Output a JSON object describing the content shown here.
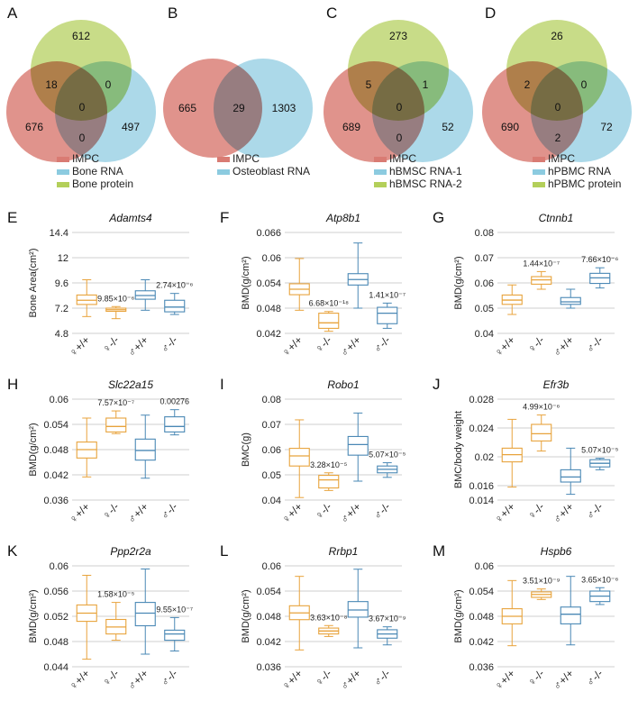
{
  "colors": {
    "impc": "#d97b73",
    "blue": "#8ccbe0",
    "green": "#b3cf5a",
    "female_box": "#e8a33c",
    "male_box": "#4a88b5",
    "grid": "#cfcfcf"
  },
  "chart_data": [
    {
      "type": "venn3",
      "panel": "A",
      "sets": [
        "IMPC",
        "Bone RNA",
        "Bone protein"
      ],
      "regions": {
        "impc_only": "676",
        "blue_only": "497",
        "green_only": "612",
        "impc_green": "18",
        "green_blue": "0",
        "impc_blue": "0",
        "center": "0"
      }
    },
    {
      "type": "venn2",
      "panel": "B",
      "sets": [
        "IMPC",
        "Osteoblast RNA"
      ],
      "regions": {
        "left_only": "665",
        "overlap": "29",
        "right_only": "1303"
      }
    },
    {
      "type": "venn3",
      "panel": "C",
      "sets": [
        "IMPC",
        "hBMSC RNA-1",
        "hBMSC RNA-2"
      ],
      "regions": {
        "impc_only": "689",
        "blue_only": "52",
        "green_only": "273",
        "impc_green": "5",
        "green_blue": "1",
        "impc_blue": "0",
        "center": "0"
      }
    },
    {
      "type": "venn3",
      "panel": "D",
      "sets": [
        "IMPC",
        "hPBMC RNA",
        "hPBMC protein"
      ],
      "regions": {
        "impc_only": "690",
        "blue_only": "72",
        "green_only": "26",
        "impc_green": "2",
        "green_blue": "0",
        "impc_blue": "2",
        "center": "0"
      }
    },
    {
      "type": "boxplot",
      "panel": "E",
      "title": "Adamts4",
      "ylabel": "Bone Area(cm²)",
      "ylim": [
        4.8,
        14.4
      ],
      "yticks": [
        "14.4",
        "12",
        "9.6",
        "7.2",
        "4.8"
      ],
      "categories": [
        "♀+/+",
        "♀-/-",
        "♂+/+",
        "♂-/-"
      ],
      "boxes": [
        {
          "min": 6.4,
          "q1": 7.55,
          "median": 7.95,
          "q3": 8.45,
          "max": 9.9,
          "group": "female"
        },
        {
          "min": 6.2,
          "q1": 6.9,
          "median": 7.05,
          "q3": 7.2,
          "max": 7.35,
          "group": "female"
        },
        {
          "min": 7.0,
          "q1": 8.05,
          "median": 8.4,
          "q3": 8.85,
          "max": 9.9,
          "group": "male"
        },
        {
          "min": 6.6,
          "q1": 6.85,
          "median": 7.3,
          "q3": 7.95,
          "max": 8.6,
          "group": "male"
        }
      ],
      "pvalues": [
        {
          "box": 1,
          "text": "9.85×10⁻⁶"
        },
        {
          "box": 3,
          "text": "2.74×10⁻⁶"
        }
      ]
    },
    {
      "type": "boxplot",
      "panel": "F",
      "title": "Atp8b1",
      "ylabel": "BMD(g/cm²)",
      "ylim": [
        0.042,
        0.066
      ],
      "yticks": [
        "0.066",
        "0.06",
        "0.054",
        "0.048",
        "0.042"
      ],
      "categories": [
        "♀+/+",
        "♀-/-",
        "♂+/+",
        "♂-/-"
      ],
      "boxes": [
        {
          "min": 0.0475,
          "q1": 0.0512,
          "median": 0.0525,
          "q3": 0.0538,
          "max": 0.0598,
          "group": "female"
        },
        {
          "min": 0.0425,
          "q1": 0.0432,
          "median": 0.0445,
          "q3": 0.0468,
          "max": 0.0472,
          "group": "female"
        },
        {
          "min": 0.048,
          "q1": 0.0535,
          "median": 0.0548,
          "q3": 0.0562,
          "max": 0.0635,
          "group": "male"
        },
        {
          "min": 0.0432,
          "q1": 0.0443,
          "median": 0.0468,
          "q3": 0.0482,
          "max": 0.0492,
          "group": "male"
        }
      ],
      "pvalues": [
        {
          "box": 1,
          "text": "6.68×10⁻¹⁸"
        },
        {
          "box": 3,
          "text": "1.41×10⁻⁷"
        }
      ]
    },
    {
      "type": "boxplot",
      "panel": "G",
      "title": "Ctnnb1",
      "ylabel": "BMD(g/cm²)",
      "ylim": [
        0.04,
        0.08
      ],
      "yticks": [
        "0.08",
        "0.07",
        "0.06",
        "0.05",
        "0.04"
      ],
      "categories": [
        "♀+/+",
        "♀-/-",
        "♂+/+",
        "♂-/-"
      ],
      "boxes": [
        {
          "min": 0.0475,
          "q1": 0.0515,
          "median": 0.0532,
          "q3": 0.0552,
          "max": 0.0592,
          "group": "female"
        },
        {
          "min": 0.0575,
          "q1": 0.0595,
          "median": 0.0612,
          "q3": 0.0625,
          "max": 0.0645,
          "group": "female"
        },
        {
          "min": 0.05,
          "q1": 0.0515,
          "median": 0.0525,
          "q3": 0.0542,
          "max": 0.0575,
          "group": "male"
        },
        {
          "min": 0.058,
          "q1": 0.0598,
          "median": 0.062,
          "q3": 0.0638,
          "max": 0.066,
          "group": "male"
        }
      ],
      "pvalues": [
        {
          "box": 1,
          "text": "1.44×10⁻⁷"
        },
        {
          "box": 3,
          "text": "7.66×10⁻⁶"
        }
      ]
    },
    {
      "type": "boxplot",
      "panel": "H",
      "title": "Slc22a15",
      "ylabel": "BMD(g/cm²)",
      "ylim": [
        0.036,
        0.06
      ],
      "yticks": [
        "0.06",
        "0.054",
        "0.048",
        "0.042",
        "0.036"
      ],
      "categories": [
        "♀+/+",
        "♀-/-",
        "♂+/+",
        "♂-/-"
      ],
      "boxes": [
        {
          "min": 0.0415,
          "q1": 0.046,
          "median": 0.048,
          "q3": 0.0498,
          "max": 0.0555,
          "group": "female"
        },
        {
          "min": 0.0518,
          "q1": 0.0522,
          "median": 0.0535,
          "q3": 0.0555,
          "max": 0.0572,
          "group": "female"
        },
        {
          "min": 0.0412,
          "q1": 0.0455,
          "median": 0.0478,
          "q3": 0.0505,
          "max": 0.0562,
          "group": "male"
        },
        {
          "min": 0.0515,
          "q1": 0.0522,
          "median": 0.0535,
          "q3": 0.0558,
          "max": 0.0575,
          "group": "male"
        }
      ],
      "pvalues": [
        {
          "box": 1,
          "text": "7.57×10⁻⁷"
        },
        {
          "box": 3,
          "text": "0.00276"
        }
      ]
    },
    {
      "type": "boxplot",
      "panel": "I",
      "title": "Robo1",
      "ylabel": "BMC(g)",
      "ylim": [
        0.04,
        0.08
      ],
      "yticks": [
        "0.08",
        "0.07",
        "0.06",
        "0.05",
        "0.04"
      ],
      "categories": [
        "♀+/+",
        "♀-/-",
        "♂+/+",
        "♂-/-"
      ],
      "boxes": [
        {
          "min": 0.041,
          "q1": 0.0535,
          "median": 0.0575,
          "q3": 0.0605,
          "max": 0.0718,
          "group": "female"
        },
        {
          "min": 0.0438,
          "q1": 0.0448,
          "median": 0.048,
          "q3": 0.0498,
          "max": 0.0508,
          "group": "female"
        },
        {
          "min": 0.0475,
          "q1": 0.0578,
          "median": 0.062,
          "q3": 0.0652,
          "max": 0.0745,
          "group": "male"
        },
        {
          "min": 0.049,
          "q1": 0.0508,
          "median": 0.0522,
          "q3": 0.0535,
          "max": 0.0548,
          "group": "male"
        }
      ],
      "pvalues": [
        {
          "box": 1,
          "text": "3.28×10⁻⁵"
        },
        {
          "box": 3,
          "text": "5.07×10⁻⁵"
        }
      ]
    },
    {
      "type": "boxplot",
      "panel": "J",
      "title": "Efr3b",
      "ylabel": "BMC/body weight",
      "ylim": [
        0.014,
        0.028
      ],
      "yticks": [
        "0.028",
        "0.024",
        "0.02",
        "0.016",
        "0.014"
      ],
      "categories": [
        "♀+/+",
        "♀-/-",
        "♂+/+",
        "♂-/-"
      ],
      "boxes": [
        {
          "min": 0.0158,
          "q1": 0.0193,
          "median": 0.0203,
          "q3": 0.0212,
          "max": 0.0252,
          "group": "female"
        },
        {
          "min": 0.0208,
          "q1": 0.0222,
          "median": 0.0232,
          "q3": 0.0245,
          "max": 0.0258,
          "group": "female"
        },
        {
          "min": 0.0148,
          "q1": 0.0165,
          "median": 0.0172,
          "q3": 0.0182,
          "max": 0.0212,
          "group": "male"
        },
        {
          "min": 0.0182,
          "q1": 0.0186,
          "median": 0.0191,
          "q3": 0.0196,
          "max": 0.0198,
          "group": "male"
        }
      ],
      "pvalues": [
        {
          "box": 1,
          "text": "4.99×10⁻⁶"
        },
        {
          "box": 3,
          "text": "5.07×10⁻⁵"
        }
      ]
    },
    {
      "type": "boxplot",
      "panel": "K",
      "title": "Ppp2r2a",
      "ylabel": "BMD(g/cm²)",
      "ylim": [
        0.044,
        0.06
      ],
      "yticks": [
        "0.06",
        "0.056",
        "0.052",
        "0.048",
        "0.044"
      ],
      "categories": [
        "♀+/+",
        "♀-/-",
        "♂+/+",
        "♂-/-"
      ],
      "boxes": [
        {
          "min": 0.0452,
          "q1": 0.0512,
          "median": 0.0525,
          "q3": 0.0538,
          "max": 0.0585,
          "group": "female"
        },
        {
          "min": 0.0482,
          "q1": 0.0492,
          "median": 0.0503,
          "q3": 0.0515,
          "max": 0.0542,
          "group": "female"
        },
        {
          "min": 0.046,
          "q1": 0.0505,
          "median": 0.0525,
          "q3": 0.0542,
          "max": 0.0595,
          "group": "male"
        },
        {
          "min": 0.0465,
          "q1": 0.0482,
          "median": 0.0492,
          "q3": 0.0498,
          "max": 0.0518,
          "group": "male"
        }
      ],
      "pvalues": [
        {
          "box": 1,
          "text": "1.58×10⁻⁵"
        },
        {
          "box": 3,
          "text": "9.55×10⁻⁷"
        }
      ]
    },
    {
      "type": "boxplot",
      "panel": "L",
      "title": "Rrbp1",
      "ylabel": "BMD(g/cm²)",
      "ylim": [
        0.036,
        0.06
      ],
      "yticks": [
        "0.06",
        "0.054",
        "0.048",
        "0.042",
        "0.036"
      ],
      "categories": [
        "♀+/+",
        "♀-/-",
        "♂+/+",
        "♂-/-"
      ],
      "boxes": [
        {
          "min": 0.04,
          "q1": 0.0472,
          "median": 0.0488,
          "q3": 0.0505,
          "max": 0.0575,
          "group": "female"
        },
        {
          "min": 0.0432,
          "q1": 0.0438,
          "median": 0.0445,
          "q3": 0.0452,
          "max": 0.0458,
          "group": "female"
        },
        {
          "min": 0.0405,
          "q1": 0.0478,
          "median": 0.0495,
          "q3": 0.0515,
          "max": 0.0592,
          "group": "male"
        },
        {
          "min": 0.0412,
          "q1": 0.0428,
          "median": 0.0438,
          "q3": 0.0448,
          "max": 0.0455,
          "group": "male"
        }
      ],
      "pvalues": [
        {
          "box": 1,
          "text": "3.63×10⁻⁸"
        },
        {
          "box": 3,
          "text": "3.67×10⁻⁹"
        }
      ]
    },
    {
      "type": "boxplot",
      "panel": "M",
      "title": "Hspb6",
      "ylabel": "BMD(g/cm²)",
      "ylim": [
        0.036,
        0.06
      ],
      "yticks": [
        "0.06",
        "0.054",
        "0.048",
        "0.042",
        "0.036"
      ],
      "categories": [
        "♀+/+",
        "♀-/-",
        "♂+/+",
        "♂-/-"
      ],
      "boxes": [
        {
          "min": 0.041,
          "q1": 0.0462,
          "median": 0.048,
          "q3": 0.0498,
          "max": 0.0565,
          "group": "female"
        },
        {
          "min": 0.052,
          "q1": 0.0525,
          "median": 0.0532,
          "q3": 0.0538,
          "max": 0.0545,
          "group": "female"
        },
        {
          "min": 0.0412,
          "q1": 0.0462,
          "median": 0.0485,
          "q3": 0.0502,
          "max": 0.0575,
          "group": "male"
        },
        {
          "min": 0.0508,
          "q1": 0.0515,
          "median": 0.0528,
          "q3": 0.054,
          "max": 0.0548,
          "group": "male"
        }
      ],
      "pvalues": [
        {
          "box": 1,
          "text": "3.51×10⁻⁹"
        },
        {
          "box": 3,
          "text": "3.65×10⁻⁶"
        }
      ]
    }
  ]
}
